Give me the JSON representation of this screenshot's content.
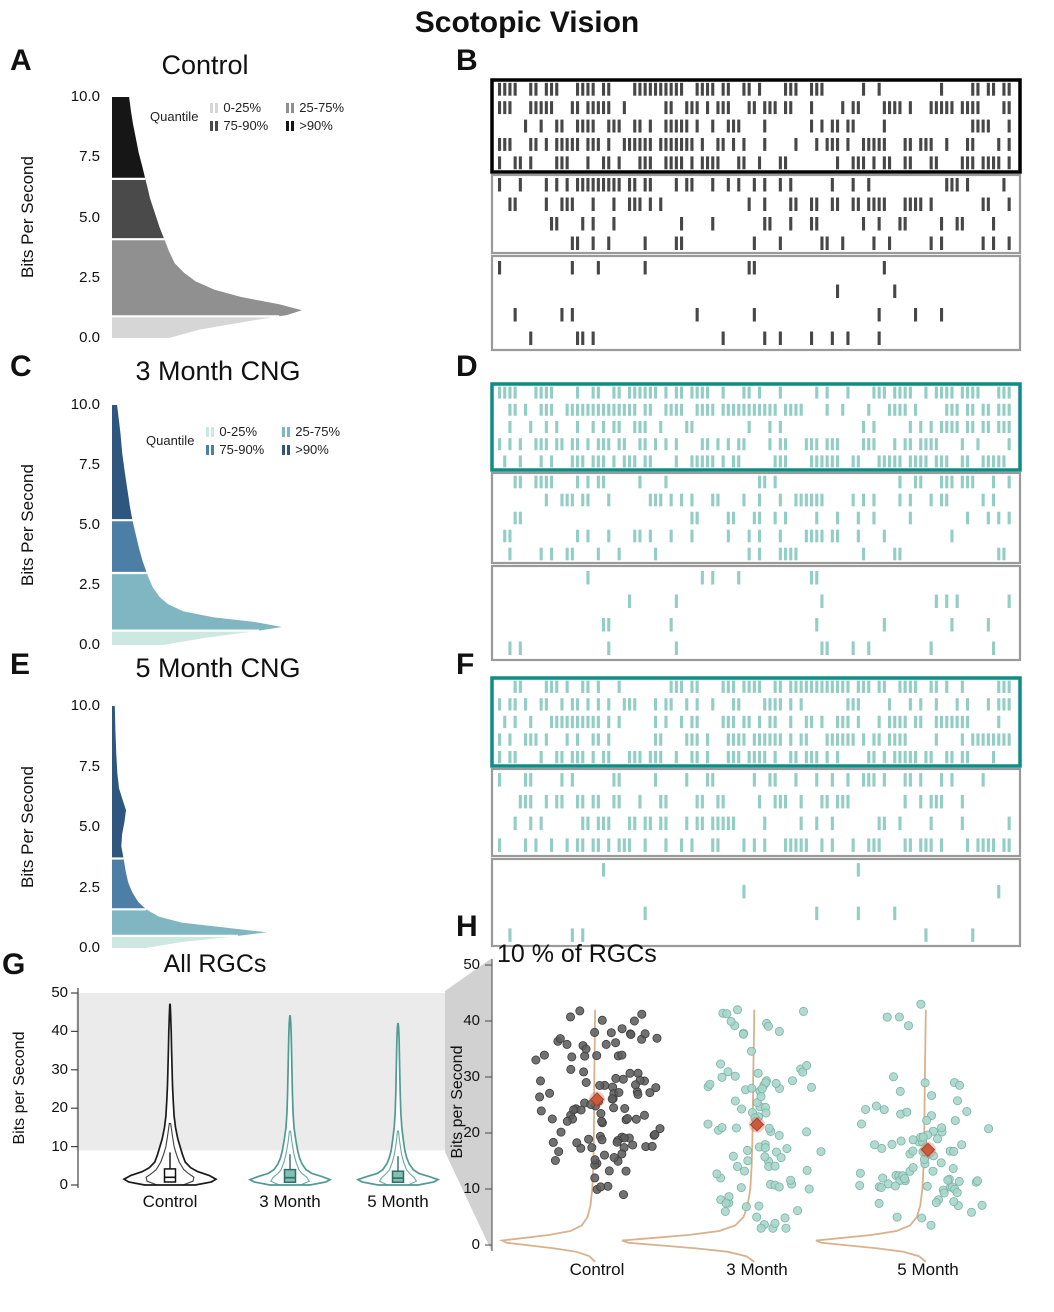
{
  "figure": {
    "title": "Scotopic Vision"
  },
  "panel_labels": {
    "A": "A",
    "B": "B",
    "C": "C",
    "D": "D",
    "E": "E",
    "F": "F",
    "G": "G",
    "H": "H"
  },
  "colors": {
    "shade_band": "#ebebeb",
    "connector": "#c6c6c6"
  },
  "chart_data": [
    {
      "id": "A",
      "type": "ridge-density",
      "title": "Control",
      "ylabel": "Bits Per Second",
      "ymax": 10,
      "yticks": [
        "10.0",
        "7.5",
        "5.0",
        "2.5",
        "0.0"
      ],
      "legend": {
        "title": "Quantile",
        "items": [
          "0-25%",
          "25-75%",
          "75-90%",
          ">90%"
        ]
      },
      "quantile_colors": [
        "#d6d6d6",
        "#909090",
        "#4a4a4a",
        "#161616"
      ],
      "quantile_breaks": [
        0.9,
        4.1,
        6.6
      ],
      "density": [
        [
          0,
          0.3
        ],
        [
          0.35,
          0.46
        ],
        [
          0.7,
          0.72
        ],
        [
          0.95,
          0.92
        ],
        [
          1.15,
          1.0
        ],
        [
          1.4,
          0.88
        ],
        [
          1.7,
          0.68
        ],
        [
          2.0,
          0.54
        ],
        [
          2.35,
          0.44
        ],
        [
          2.7,
          0.38
        ],
        [
          3.1,
          0.33
        ],
        [
          3.6,
          0.3
        ],
        [
          4.1,
          0.275
        ],
        [
          4.6,
          0.25
        ],
        [
          5.2,
          0.225
        ],
        [
          5.8,
          0.2
        ],
        [
          6.3,
          0.185
        ],
        [
          6.6,
          0.175
        ],
        [
          7.1,
          0.16
        ],
        [
          7.7,
          0.14
        ],
        [
          8.3,
          0.125
        ],
        [
          8.9,
          0.11
        ],
        [
          9.4,
          0.1
        ],
        [
          10,
          0.09
        ]
      ]
    },
    {
      "id": "B",
      "type": "spike-raster",
      "spike_color": "#474747",
      "highlight_color": "#000000",
      "blocks": [
        {
          "rows": 5,
          "density": 0.5,
          "highlighted": true,
          "quantile": ">90%"
        },
        {
          "rows": 4,
          "density": 0.26,
          "highlighted": false,
          "quantile": "75-90%"
        },
        {
          "rows": 4,
          "density": 0.09,
          "highlighted": false,
          "quantile": "25-75%"
        }
      ]
    },
    {
      "id": "C",
      "type": "ridge-density",
      "title": "3 Month CNG",
      "ylabel": "Bits Per Second",
      "ymax": 10,
      "yticks": [
        "10.0",
        "7.5",
        "5.0",
        "2.5",
        "0.0"
      ],
      "legend": {
        "title": "Quantile",
        "items": [
          "0-25%",
          "25-75%",
          "75-90%",
          ">90%"
        ]
      },
      "quantile_colors": [
        "#cde8e0",
        "#7fb6c2",
        "#4d7fa6",
        "#2e567f"
      ],
      "quantile_breaks": [
        0.6,
        3.0,
        5.2
      ],
      "density": [
        [
          0,
          0.3
        ],
        [
          0.3,
          0.55
        ],
        [
          0.55,
          0.82
        ],
        [
          0.75,
          1.0
        ],
        [
          0.95,
          0.85
        ],
        [
          1.15,
          0.6
        ],
        [
          1.4,
          0.42
        ],
        [
          1.7,
          0.33
        ],
        [
          2.0,
          0.28
        ],
        [
          2.4,
          0.24
        ],
        [
          2.8,
          0.215
        ],
        [
          3.0,
          0.205
        ],
        [
          3.5,
          0.18
        ],
        [
          4.0,
          0.16
        ],
        [
          4.6,
          0.14
        ],
        [
          5.2,
          0.12
        ],
        [
          5.8,
          0.105
        ],
        [
          6.5,
          0.09
        ],
        [
          7.2,
          0.075
        ],
        [
          8.0,
          0.06
        ],
        [
          8.8,
          0.05
        ],
        [
          9.4,
          0.04
        ],
        [
          10,
          0.03
        ]
      ]
    },
    {
      "id": "D",
      "type": "spike-raster",
      "spike_color": "#92cec3",
      "highlight_color": "#0e8c85",
      "blocks": [
        {
          "rows": 5,
          "density": 0.48,
          "highlighted": true,
          "quantile": ">90%"
        },
        {
          "rows": 5,
          "density": 0.22,
          "highlighted": false,
          "quantile": "75-90%"
        },
        {
          "rows": 4,
          "density": 0.06,
          "highlighted": false,
          "quantile": "25-75%"
        }
      ]
    },
    {
      "id": "E",
      "type": "ridge-density",
      "title": "5 Month CNG",
      "ylabel": "Bits Per Second",
      "ymax": 10,
      "yticks": [
        "10.0",
        "7.5",
        "5.0",
        "2.5",
        "0.0"
      ],
      "quantile_colors": [
        "#cde8e0",
        "#7fb6c2",
        "#4d7fa6",
        "#2e567f"
      ],
      "quantile_breaks": [
        0.5,
        1.6,
        3.7
      ],
      "density": [
        [
          0,
          0.22
        ],
        [
          0.25,
          0.45
        ],
        [
          0.45,
          0.75
        ],
        [
          0.65,
          1.0
        ],
        [
          0.85,
          0.72
        ],
        [
          1.05,
          0.45
        ],
        [
          1.3,
          0.3
        ],
        [
          1.6,
          0.22
        ],
        [
          1.9,
          0.17
        ],
        [
          2.3,
          0.13
        ],
        [
          2.7,
          0.105
        ],
        [
          3.1,
          0.09
        ],
        [
          3.7,
          0.075
        ],
        [
          4.2,
          0.06
        ],
        [
          4.7,
          0.065
        ],
        [
          5.2,
          0.08
        ],
        [
          5.7,
          0.09
        ],
        [
          6.1,
          0.07
        ],
        [
          6.6,
          0.045
        ],
        [
          7.2,
          0.035
        ],
        [
          8.0,
          0.028
        ],
        [
          9.0,
          0.022
        ],
        [
          10,
          0.018
        ]
      ]
    },
    {
      "id": "F",
      "type": "spike-raster",
      "spike_color": "#92cec3",
      "highlight_color": "#0e8c85",
      "blocks": [
        {
          "rows": 5,
          "density": 0.48,
          "highlighted": true,
          "quantile": ">90%"
        },
        {
          "rows": 4,
          "density": 0.3,
          "highlighted": false,
          "quantile": "75-90%"
        },
        {
          "rows": 4,
          "density": 0.035,
          "highlighted": false,
          "quantile": "25-75%"
        }
      ]
    },
    {
      "id": "G",
      "type": "violin",
      "title": "All RGCs",
      "ylabel": "Bits per Second",
      "ymax": 50,
      "yticks": [
        "0",
        "10",
        "20",
        "30",
        "40",
        "50"
      ],
      "highlight_band": [
        9,
        50
      ],
      "groups": [
        {
          "label": "Control",
          "color": "#1a1a1a",
          "box_fill": "#ffffff",
          "max": 47,
          "profile": [
            [
              0,
              0.55
            ],
            [
              0.8,
              0.9
            ],
            [
              1.5,
              1.0
            ],
            [
              2.5,
              0.85
            ],
            [
              3.5,
              0.6
            ],
            [
              4.5,
              0.45
            ],
            [
              6,
              0.33
            ],
            [
              8,
              0.27
            ],
            [
              10,
              0.22
            ],
            [
              12,
              0.17
            ],
            [
              15,
              0.12
            ],
            [
              18,
              0.09
            ],
            [
              22,
              0.07
            ],
            [
              26,
              0.055
            ],
            [
              30,
              0.045
            ],
            [
              35,
              0.035
            ],
            [
              40,
              0.025
            ],
            [
              44,
              0.015
            ],
            [
              47,
              0.004
            ]
          ],
          "inner_profile": [
            [
              0,
              0.28
            ],
            [
              1,
              0.5
            ],
            [
              2,
              0.52
            ],
            [
              3,
              0.4
            ],
            [
              4,
              0.3
            ],
            [
              6,
              0.2
            ],
            [
              8,
              0.14
            ],
            [
              10,
              0.09
            ],
            [
              13,
              0.05
            ],
            [
              16,
              0.015
            ]
          ],
          "box": {
            "q1": 0.8,
            "median": 2.0,
            "q3": 4.2,
            "whisker_high": 8.5
          }
        },
        {
          "label": "3 Month",
          "color": "#4f9a91",
          "box_fill": "#82bfb5",
          "max": 44,
          "profile": [
            [
              0,
              0.5
            ],
            [
              0.8,
              0.9
            ],
            [
              1.4,
              1.0
            ],
            [
              2.2,
              0.8
            ],
            [
              3,
              0.55
            ],
            [
              4,
              0.4
            ],
            [
              5.5,
              0.3
            ],
            [
              7,
              0.24
            ],
            [
              9,
              0.19
            ],
            [
              12,
              0.14
            ],
            [
              15,
              0.1
            ],
            [
              19,
              0.075
            ],
            [
              24,
              0.06
            ],
            [
              29,
              0.05
            ],
            [
              34,
              0.04
            ],
            [
              39,
              0.03
            ],
            [
              42,
              0.02
            ],
            [
              44,
              0.005
            ]
          ],
          "inner_profile": [
            [
              0,
              0.26
            ],
            [
              1,
              0.48
            ],
            [
              2,
              0.42
            ],
            [
              3,
              0.3
            ],
            [
              4,
              0.22
            ],
            [
              6,
              0.15
            ],
            [
              8,
              0.1
            ],
            [
              11,
              0.05
            ],
            [
              14,
              0.015
            ]
          ],
          "box": {
            "q1": 0.7,
            "median": 1.9,
            "q3": 4.0,
            "whisker_high": 8.0
          }
        },
        {
          "label": "5 Month",
          "color": "#4f9a91",
          "box_fill": "#82bfb5",
          "max": 42,
          "profile": [
            [
              0,
              0.5
            ],
            [
              0.8,
              0.9
            ],
            [
              1.4,
              1.0
            ],
            [
              2.2,
              0.78
            ],
            [
              3,
              0.52
            ],
            [
              4,
              0.38
            ],
            [
              5.5,
              0.28
            ],
            [
              7,
              0.22
            ],
            [
              9,
              0.17
            ],
            [
              12,
              0.13
            ],
            [
              15,
              0.095
            ],
            [
              19,
              0.07
            ],
            [
              24,
              0.055
            ],
            [
              29,
              0.045
            ],
            [
              34,
              0.035
            ],
            [
              38,
              0.028
            ],
            [
              41,
              0.015
            ],
            [
              42,
              0.005
            ]
          ],
          "inner_profile": [
            [
              0,
              0.26
            ],
            [
              1,
              0.46
            ],
            [
              2,
              0.4
            ],
            [
              3,
              0.29
            ],
            [
              4,
              0.21
            ],
            [
              6,
              0.14
            ],
            [
              8,
              0.09
            ],
            [
              11,
              0.045
            ],
            [
              14,
              0.012
            ]
          ],
          "box": {
            "q1": 0.7,
            "median": 1.8,
            "q3": 3.6,
            "whisker_high": 7.5
          }
        }
      ]
    },
    {
      "id": "H",
      "type": "jitter-strip",
      "title": "10 % of RGCs",
      "ylabel": "Bits per Second",
      "ymax": 50,
      "yticks": [
        "0",
        "10",
        "20",
        "30",
        "40",
        "50"
      ],
      "mean_color": "#cd5a3a",
      "density_color": "#d9b18c",
      "density_profile": [
        [
          42,
          0.02
        ],
        [
          38,
          0.022
        ],
        [
          34,
          0.025
        ],
        [
          30,
          0.028
        ],
        [
          26,
          0.03
        ],
        [
          22,
          0.032
        ],
        [
          18,
          0.035
        ],
        [
          14,
          0.04
        ],
        [
          10,
          0.05
        ],
        [
          7,
          0.07
        ],
        [
          5,
          0.1
        ],
        [
          3.5,
          0.16
        ],
        [
          2.5,
          0.28
        ],
        [
          1.8,
          0.5
        ],
        [
          1.2,
          0.8
        ],
        [
          0.8,
          1.0
        ],
        [
          0.4,
          0.95
        ],
        [
          0,
          0.75
        ],
        [
          -0.6,
          0.45
        ],
        [
          -1.2,
          0.22
        ],
        [
          -2,
          0.08
        ],
        [
          -3,
          0.02
        ]
      ],
      "groups": [
        {
          "label": "Control",
          "dot_color": "#5d5d5d",
          "dot_stroke": "#3c3c3c",
          "mean": 26,
          "y_range": [
            9,
            43.5
          ],
          "clusters": [
            {
              "mean": 27,
              "sd": 6,
              "n": 66
            },
            {
              "mean": 18,
              "sd": 3.5,
              "n": 28
            },
            {
              "mean": 37.5,
              "sd": 2.5,
              "n": 14
            }
          ]
        },
        {
          "label": "3 Month",
          "dot_color": "#a7d5c9",
          "dot_stroke": "#79b3a6",
          "mean": 21.5,
          "y_range": [
            3,
            42
          ],
          "clusters": [
            {
              "mean": 29,
              "sd": 3.5,
              "n": 30
            },
            {
              "mean": 15,
              "sd": 5,
              "n": 42
            },
            {
              "mean": 38.5,
              "sd": 2,
              "n": 10
            },
            {
              "mean": 6,
              "sd": 2,
              "n": 10
            }
          ]
        },
        {
          "label": "5 Month",
          "dot_color": "#a7d5c9",
          "dot_stroke": "#79b3a6",
          "mean": 17,
          "y_range": [
            3,
            43
          ],
          "clusters": [
            {
              "mean": 16,
              "sd": 4,
              "n": 46
            },
            {
              "mean": 9,
              "sd": 2.5,
              "n": 22
            },
            {
              "mean": 24,
              "sd": 2.5,
              "n": 10
            },
            {
              "mean": 30,
              "sd": 1.5,
              "n": 4
            },
            {
              "mean": 40,
              "sd": 1.5,
              "n": 4
            }
          ]
        }
      ]
    }
  ]
}
